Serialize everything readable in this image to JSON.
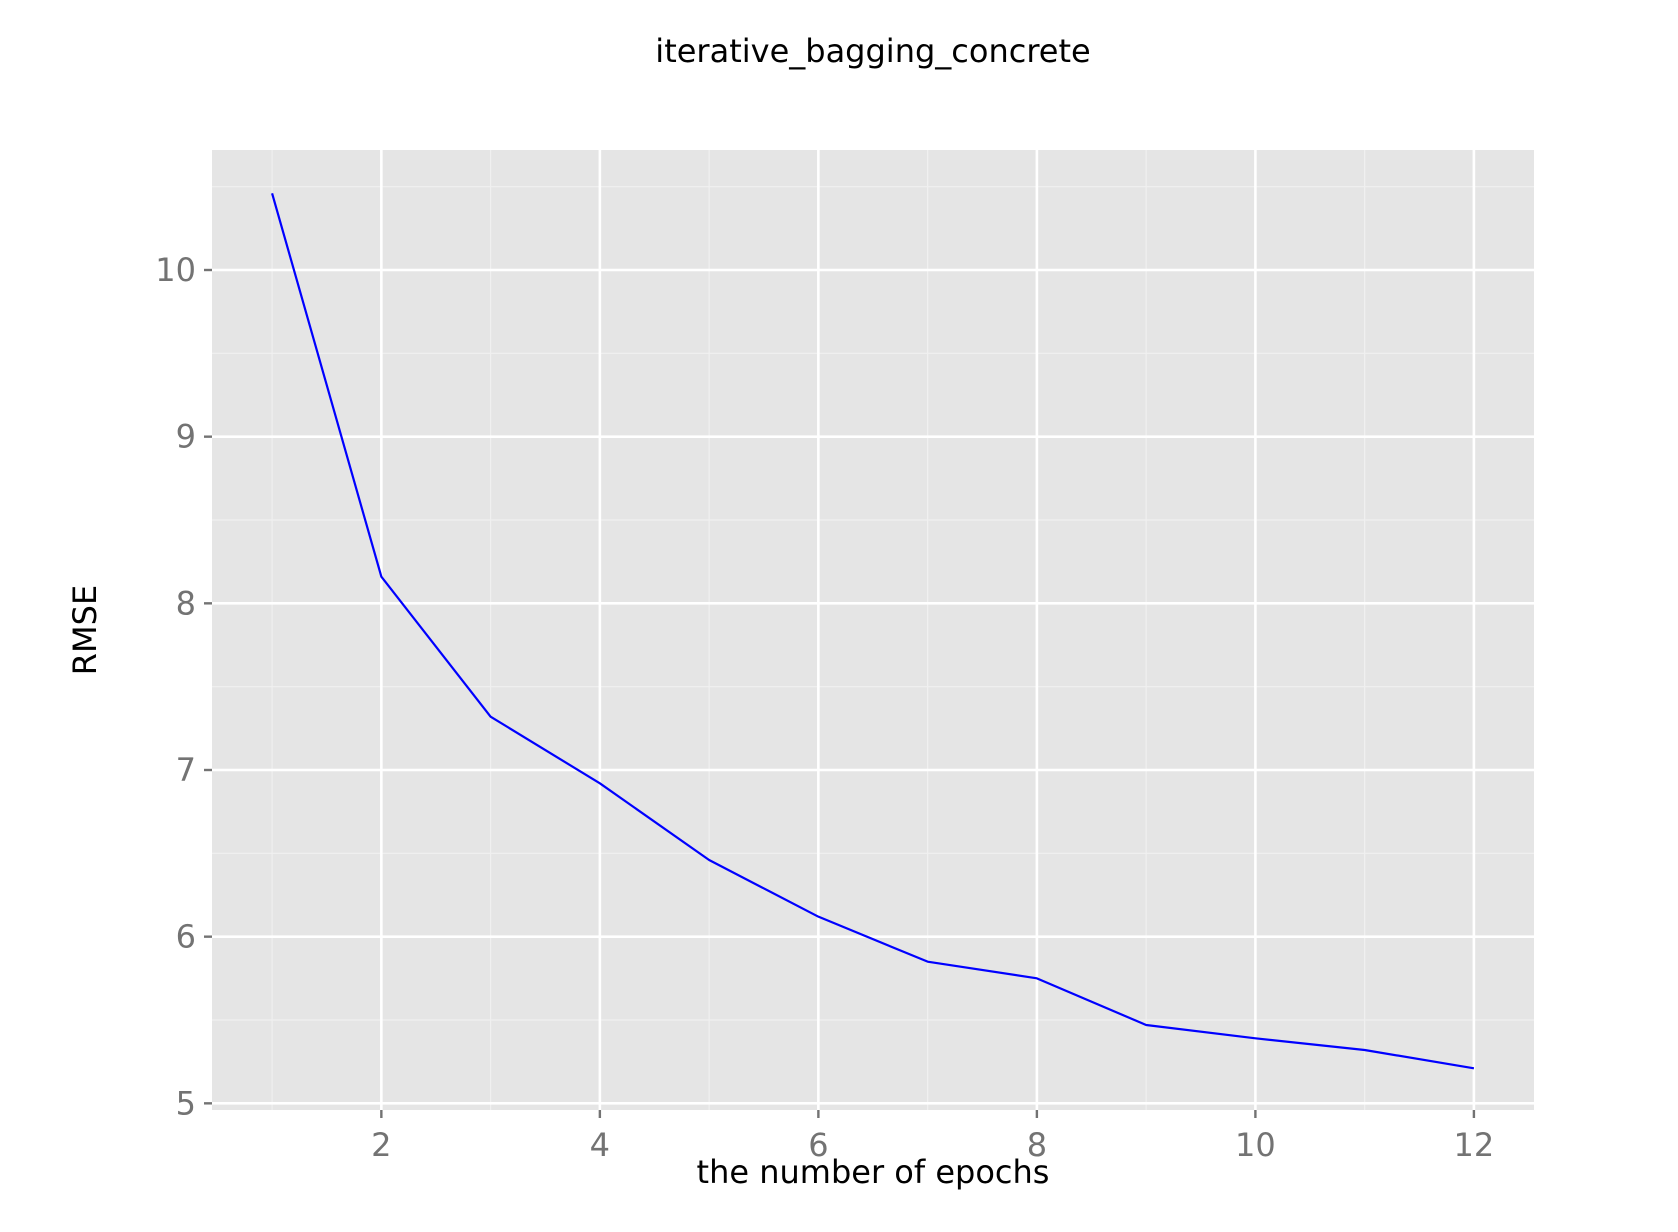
{
  "chart_data": {
    "type": "line",
    "title": "iterative_bagging_concrete",
    "xlabel": "the number of epochs",
    "ylabel": "RMSE",
    "xlim": [
      0.45,
      12.55
    ],
    "ylim": [
      4.96,
      10.72
    ],
    "grid": true,
    "x_ticks": [
      2,
      4,
      6,
      8,
      10,
      12
    ],
    "x_tick_labels": [
      "2",
      "4",
      "6",
      "8",
      "10",
      "12"
    ],
    "y_ticks": [
      5,
      6,
      7,
      8,
      9,
      10
    ],
    "y_tick_labels": [
      "5",
      "6",
      "7",
      "8",
      "9",
      "10"
    ],
    "x": [
      1,
      2,
      3,
      4,
      5,
      6,
      7,
      8,
      9,
      10,
      11,
      12
    ],
    "series": [
      {
        "values": [
          10.46,
          8.16,
          7.32,
          6.92,
          6.46,
          6.12,
          5.85,
          5.75,
          5.47,
          5.39,
          5.32,
          5.21
        ],
        "color": "#0000ff"
      }
    ],
    "colors": {
      "panel_background": "#e5e5e5",
      "major_grid": "#ffffff",
      "minor_grid": "#f0f0f0",
      "tick_label": "#737373",
      "axis_tick": "#737373"
    }
  }
}
